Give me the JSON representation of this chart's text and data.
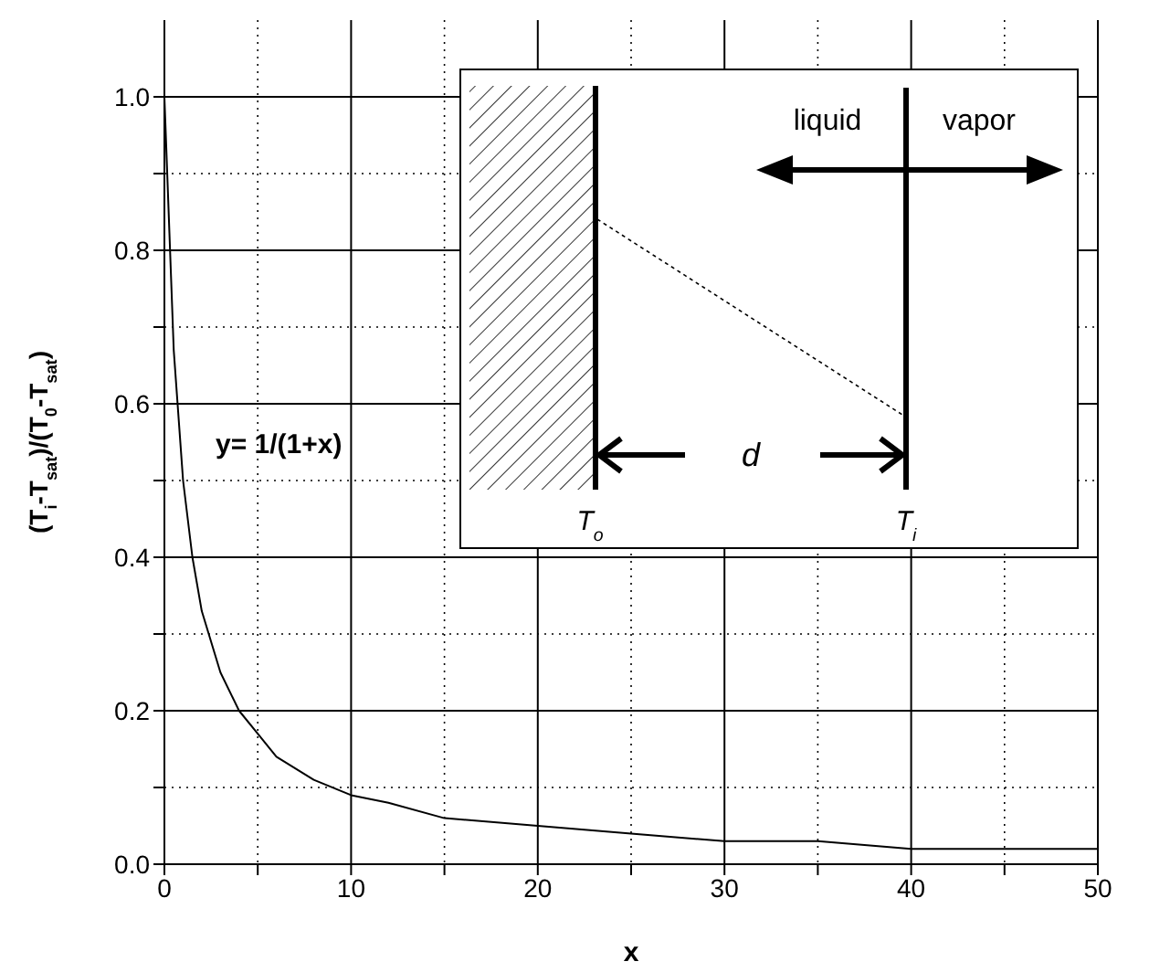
{
  "chart_data": {
    "type": "line",
    "xlabel": "x",
    "ylabel": "(T$_{i}$-T$_{sat}$)/(T$_{0}$-T$_{sat}$)",
    "x": [
      0,
      0.5,
      1,
      1.5,
      2,
      3,
      4,
      5,
      6,
      8,
      10,
      12,
      15,
      20,
      25,
      30,
      35,
      40,
      45,
      50
    ],
    "series": [
      {
        "color": "#000000",
        "values": [
          1.0,
          0.67,
          0.5,
          0.4,
          0.33,
          0.25,
          0.2,
          0.17,
          0.14,
          0.11,
          0.09,
          0.08,
          0.06,
          0.05,
          0.04,
          0.03,
          0.03,
          0.02,
          0.02,
          0.02
        ]
      }
    ],
    "xlim": [
      0,
      50
    ],
    "ylim": [
      0,
      1.1
    ],
    "xticks": [
      0,
      {
        "value": 5,
        "label": null
      },
      10,
      {
        "value": 15,
        "label": null
      },
      20,
      {
        "value": 25,
        "label": null
      },
      30,
      {
        "value": 35,
        "label": null
      },
      40,
      {
        "value": 45,
        "label": null
      },
      50
    ],
    "yticks": [
      {
        "value": 0,
        "label": "0.0"
      },
      {
        "value": 0.1,
        "label": null
      },
      {
        "value": 0.2,
        "label": "0.2"
      },
      {
        "value": 0.3,
        "label": null
      },
      {
        "value": 0.4,
        "label": "0.4"
      },
      {
        "value": 0.5,
        "label": null
      },
      {
        "value": 0.6,
        "label": "0.6"
      },
      {
        "value": 0.7,
        "label": null
      },
      {
        "value": 0.8,
        "label": "0.8"
      },
      {
        "value": 0.9,
        "label": null
      },
      {
        "value": 1.0,
        "label": "1.0"
      }
    ],
    "grid": true,
    "annotations": [
      "y= 1/(1+x)",
      "liquid",
      "vapor",
      "d",
      "T$_{o}$",
      "T$_{i}$"
    ]
  }
}
